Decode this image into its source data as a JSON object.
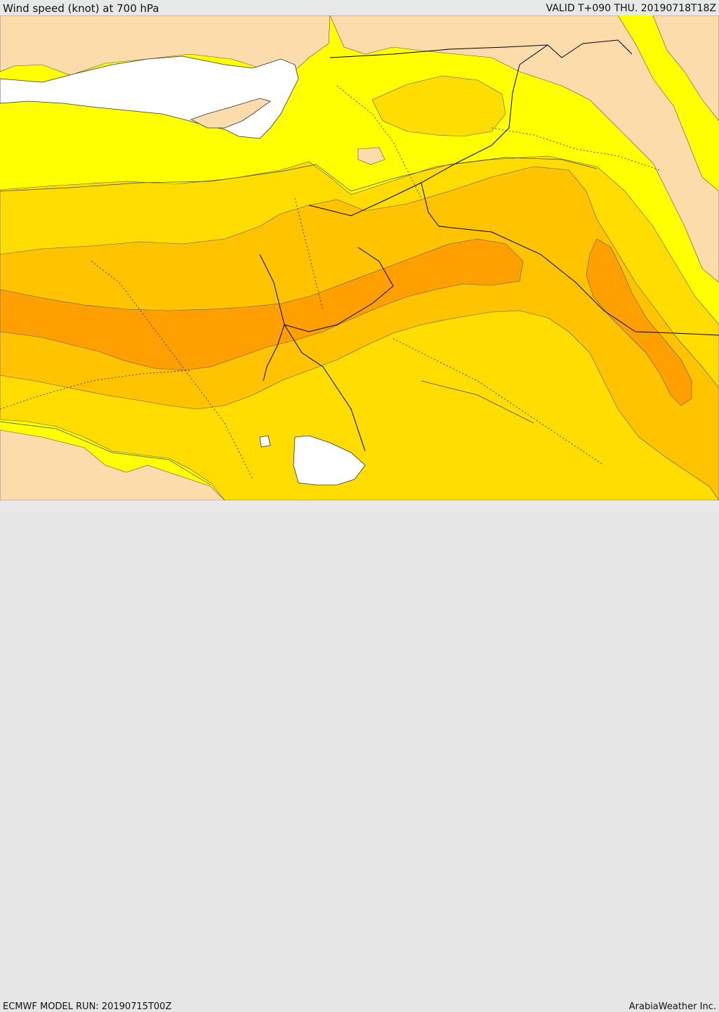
{
  "header": {
    "title": "Wind speed (knot) at 700 hPa",
    "valid": "VALID T+090 THU. 20190718T18Z"
  },
  "footer": {
    "run": "ECMWF MODEL RUN: 20190715T00Z",
    "credit": "ArabiaWeather Inc."
  },
  "map": {
    "field": "wind speed 700 hPa",
    "colors": {
      "sea": "#ffffff",
      "calm": "#fcdcaa",
      "band_1": "#ffff00",
      "band_2": "#ffdd00",
      "band_3": "#ffc300",
      "band_4": "#ff9f00",
      "contour": "#333333",
      "border": "#000000"
    }
  }
}
